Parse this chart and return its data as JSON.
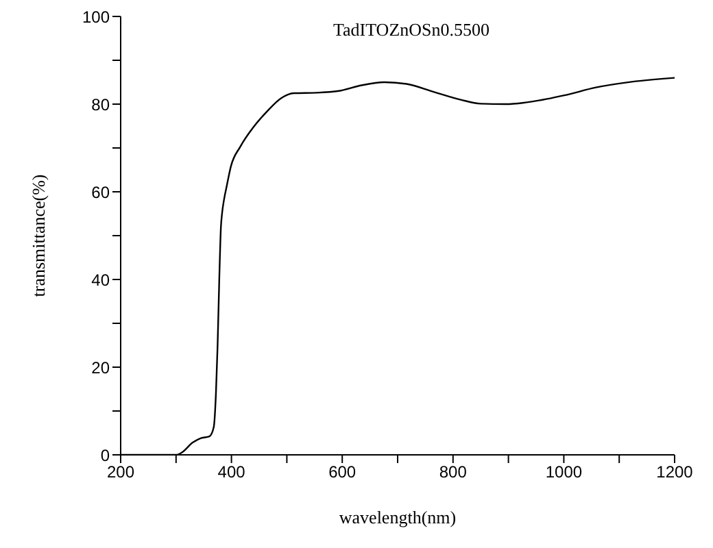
{
  "chart_data": {
    "type": "line",
    "title": "TadITOZnOSn0.5500",
    "xlabel": "wavelength(nm)",
    "ylabel": "transmittance(%)",
    "x": [
      200,
      300,
      310,
      330,
      345,
      360,
      368,
      372,
      375,
      378,
      381,
      383,
      387,
      391,
      399,
      416,
      440,
      464,
      489,
      513,
      554,
      594,
      635,
      676,
      716,
      765,
      814,
      850,
      895,
      944,
      1001,
      1058,
      1123,
      1200
    ],
    "series": [
      {
        "color": "#000000",
        "values": [
          0,
          0,
          0.5,
          2.8,
          3.8,
          4.2,
          6.3,
          14,
          25,
          40,
          52,
          55,
          58.5,
          61,
          65.8,
          70.3,
          74.8,
          78.3,
          81.3,
          82.5,
          82.6,
          83,
          84.3,
          85,
          84.6,
          82.8,
          81,
          80.1,
          80,
          80.6,
          82,
          83.8,
          85.1,
          86
        ]
      }
    ],
    "xlim": [
      200,
      1200
    ],
    "xticks": [
      200,
      {
        "value": 300,
        "label": null
      },
      400,
      {
        "value": 500,
        "label": null
      },
      600,
      {
        "value": 700,
        "label": null
      },
      800,
      {
        "value": 900,
        "label": null
      },
      1000,
      {
        "value": 1100,
        "label": null
      },
      1200
    ],
    "ylim": [
      0,
      100
    ],
    "yticks": [
      0,
      {
        "value": 10,
        "label": null
      },
      20,
      {
        "value": 30,
        "label": null
      },
      40,
      {
        "value": 50,
        "label": null
      },
      60,
      {
        "value": 70,
        "label": null
      },
      80,
      {
        "value": 90,
        "label": null
      },
      100
    ],
    "grid": false,
    "legend": false,
    "marker": "none",
    "line_style": "solid"
  }
}
